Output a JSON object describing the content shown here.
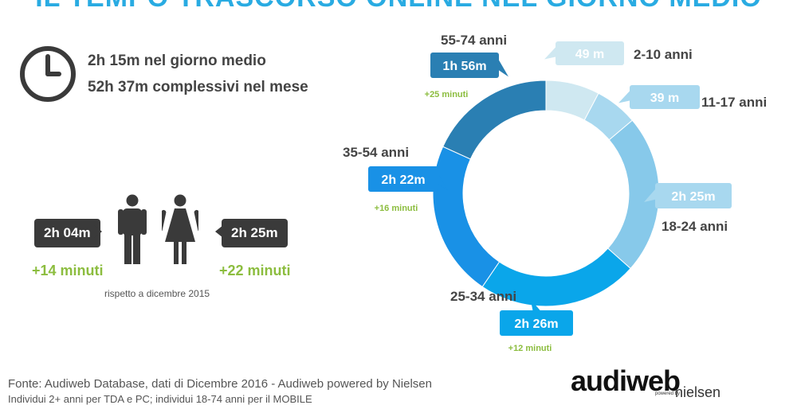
{
  "title": "IL TEMPO TRASCORSO ONLINE NEL GIORNO MEDIO",
  "summary": {
    "per_day": "2h 15m nel giorno medio",
    "per_month": "52h 37m complessivi nel mese"
  },
  "gender": {
    "male_time": "2h 04m",
    "male_delta": "+14 minuti",
    "female_time": "2h 25m",
    "female_delta": "+22 minuti",
    "note": "rispetto a dicembre 2015"
  },
  "chart_data": {
    "type": "pie",
    "subtype": "donut",
    "categories": [
      "2-10 anni",
      "11-17 anni",
      "18-24 anni",
      "25-34 anni",
      "35-54 anni",
      "55-74 anni"
    ],
    "values": [
      49,
      39,
      145,
      146,
      142,
      116
    ],
    "value_labels": [
      "49 m",
      "39 m",
      "2h 25m",
      "2h 26m",
      "2h 22m",
      "1h 56m"
    ],
    "deltas": [
      "",
      "",
      "",
      "+12 minuti",
      "+16 minuti",
      "+25 minuti"
    ],
    "colors": [
      "#cfe8f1",
      "#a8d8ef",
      "#87c9ea",
      "#0aa6ea",
      "#1991e6",
      "#2a7fb3"
    ]
  },
  "footer": {
    "source": "Fonte: Audiweb Database, dati di Dicembre 2016 - Audiweb powered by Nielsen",
    "universe": "Individui 2+ anni per TDA e PC; individui 18-74 anni per il MOBILE"
  },
  "logo": {
    "brand": "audiweb",
    "powered": "powered by",
    "partner": "nielsen"
  }
}
